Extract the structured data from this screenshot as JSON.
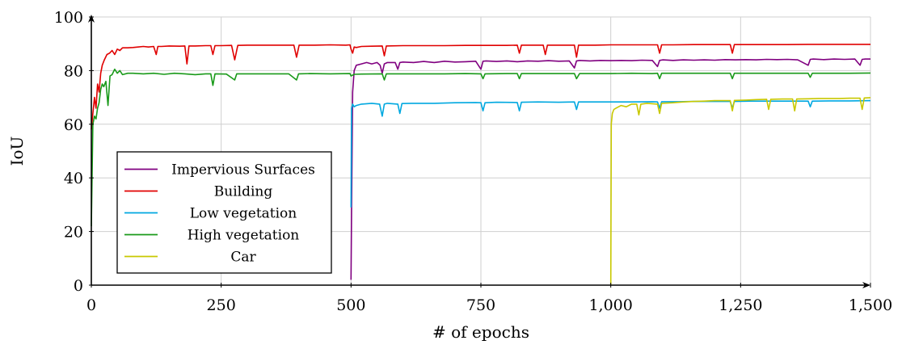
{
  "chart_data": {
    "type": "line",
    "xlabel": "# of epochs",
    "ylabel": "IoU",
    "xlim": [
      0,
      1500
    ],
    "ylim": [
      0,
      100
    ],
    "xticks": [
      0,
      250,
      500,
      750,
      1000,
      1250,
      1500
    ],
    "xtick_labels": [
      "0",
      "250",
      "500",
      "750",
      "1,000",
      "1,250",
      "1,500"
    ],
    "yticks": [
      0,
      20,
      40,
      60,
      80,
      100
    ],
    "ytick_labels": [
      "0",
      "20",
      "40",
      "60",
      "80",
      "100"
    ],
    "grid": true,
    "legend_position": "lower-left",
    "series": [
      {
        "name": "Impervious Surfaces",
        "color": "#800080",
        "x": [
          500,
          501,
          503,
          506,
          510,
          520,
          530,
          540,
          550,
          556,
          560,
          564,
          570,
          585,
          590,
          594,
          600,
          620,
          640,
          660,
          680,
          700,
          720,
          740,
          750,
          754,
          760,
          780,
          800,
          820,
          840,
          860,
          880,
          900,
          920,
          930,
          934,
          940,
          960,
          980,
          1000,
          1020,
          1040,
          1060,
          1080,
          1090,
          1094,
          1100,
          1120,
          1140,
          1160,
          1180,
          1200,
          1220,
          1240,
          1260,
          1280,
          1300,
          1320,
          1340,
          1360,
          1380,
          1384,
          1390,
          1410,
          1430,
          1450,
          1470,
          1480,
          1484,
          1490,
          1500
        ],
        "y": [
          2,
          29,
          72,
          80,
          82,
          82.5,
          83,
          82.5,
          83,
          82,
          79,
          82.5,
          83,
          83,
          80.5,
          83,
          83.2,
          83,
          83.4,
          83,
          83.5,
          83.2,
          83.3,
          83.5,
          80.5,
          83.5,
          83.6,
          83.4,
          83.6,
          83.3,
          83.6,
          83.5,
          83.7,
          83.5,
          83.6,
          81,
          83.6,
          83.8,
          83.6,
          83.8,
          83.7,
          83.8,
          83.7,
          83.9,
          83.8,
          81.5,
          83.8,
          84,
          83.8,
          84,
          83.9,
          84,
          83.9,
          84.1,
          84,
          84.1,
          84,
          84.2,
          84.1,
          84.2,
          84,
          82,
          84.2,
          84.3,
          84.1,
          84.3,
          84.2,
          84.3,
          82,
          84.2,
          84.3,
          84.3
        ]
      },
      {
        "name": "Building",
        "color": "#e00000",
        "x": [
          0,
          3,
          6,
          9,
          12,
          15,
          18,
          21,
          25,
          30,
          35,
          40,
          45,
          50,
          55,
          60,
          70,
          80,
          90,
          100,
          110,
          120,
          125,
          128,
          135,
          150,
          170,
          180,
          184,
          188,
          200,
          220,
          230,
          234,
          238,
          250,
          270,
          276,
          282,
          300,
          330,
          360,
          390,
          395,
          400,
          430,
          460,
          490,
          498,
          500,
          503,
          506,
          510,
          520,
          540,
          560,
          564,
          568,
          600,
          640,
          680,
          720,
          760,
          800,
          820,
          824,
          828,
          860,
          870,
          874,
          878,
          900,
          930,
          934,
          938,
          970,
          1000,
          1040,
          1080,
          1090,
          1094,
          1098,
          1120,
          1160,
          1200,
          1230,
          1234,
          1238,
          1260,
          1300,
          1340,
          1380,
          1420,
          1460,
          1500
        ],
        "y": [
          58,
          64,
          70,
          66,
          75,
          72,
          79,
          82,
          84,
          86,
          86.5,
          87.5,
          86,
          88,
          87.5,
          88.5,
          88.5,
          88.6,
          88.8,
          89,
          88.8,
          89,
          86,
          89,
          89,
          89.2,
          89.1,
          89.2,
          82.5,
          89.2,
          89.2,
          89.3,
          89.3,
          86,
          89.3,
          89.3,
          89.4,
          84,
          89.4,
          89.5,
          89.5,
          89.5,
          89.5,
          85,
          89.5,
          89.5,
          89.6,
          89.5,
          89.6,
          88,
          86.5,
          88.8,
          88.6,
          89,
          89.1,
          89.2,
          85.5,
          89.2,
          89.3,
          89.3,
          89.3,
          89.4,
          89.4,
          89.4,
          89.5,
          86.5,
          89.5,
          89.5,
          89.5,
          86,
          89.5,
          89.5,
          89.5,
          85,
          89.5,
          89.5,
          89.6,
          89.6,
          89.6,
          89.6,
          86.5,
          89.6,
          89.6,
          89.7,
          89.7,
          89.7,
          86.5,
          89.7,
          89.7,
          89.7,
          89.7,
          89.8,
          89.8,
          89.8,
          89.8
        ]
      },
      {
        "name": "Low vegetation",
        "color": "#00a8e0",
        "x": [
          500,
          501,
          503,
          506,
          510,
          520,
          540,
          555,
          560,
          564,
          570,
          590,
          594,
          598,
          620,
          660,
          700,
          740,
          750,
          754,
          758,
          780,
          820,
          824,
          828,
          860,
          900,
          930,
          934,
          938,
          970,
          1000,
          1040,
          1080,
          1090,
          1094,
          1098,
          1130,
          1160,
          1200,
          1230,
          1234,
          1238,
          1270,
          1300,
          1340,
          1380,
          1384,
          1388,
          1420,
          1460,
          1500
        ],
        "y": [
          29,
          66,
          67.5,
          66.5,
          67,
          67.5,
          67.8,
          67.5,
          63,
          67.5,
          67.8,
          67.5,
          64,
          67.7,
          67.8,
          67.8,
          68,
          68.1,
          68,
          65,
          68,
          68.2,
          68.1,
          65,
          68.2,
          68.3,
          68.2,
          68.3,
          65.5,
          68.3,
          68.3,
          68.3,
          68.3,
          68.4,
          68.3,
          66,
          68.4,
          68.4,
          68.5,
          68.5,
          68.5,
          66,
          68.5,
          68.6,
          68.6,
          68.6,
          68.6,
          66.5,
          68.6,
          68.7,
          68.7,
          68.8
        ]
      },
      {
        "name": "High vegetation",
        "color": "#1a9a1a",
        "x": [
          0,
          3,
          6,
          9,
          12,
          15,
          18,
          21,
          24,
          28,
          32,
          36,
          40,
          45,
          50,
          55,
          60,
          70,
          80,
          100,
          120,
          140,
          160,
          180,
          200,
          220,
          230,
          234,
          238,
          260,
          276,
          280,
          300,
          340,
          380,
          395,
          399,
          420,
          460,
          498,
          500,
          503,
          506,
          520,
          560,
          564,
          568,
          600,
          640,
          680,
          720,
          750,
          754,
          758,
          800,
          820,
          824,
          828,
          860,
          900,
          930,
          934,
          940,
          980,
          1000,
          1040,
          1080,
          1090,
          1094,
          1098,
          1140,
          1180,
          1220,
          1230,
          1234,
          1238,
          1280,
          1320,
          1360,
          1380,
          1384,
          1388,
          1420,
          1460,
          1500
        ],
        "y": [
          22,
          60,
          63,
          62,
          66,
          68,
          73,
          75,
          74,
          76,
          67,
          78,
          78.5,
          80.5,
          79,
          80,
          78.5,
          79,
          79,
          78.8,
          79,
          78.6,
          79,
          78.8,
          78.5,
          78.8,
          78.8,
          74.5,
          78.8,
          78.7,
          76.5,
          78.8,
          78.8,
          78.8,
          78.8,
          76.5,
          78.8,
          78.9,
          78.8,
          78.9,
          78,
          78.3,
          78.6,
          78.7,
          78.8,
          76.5,
          78.8,
          78.8,
          78.8,
          78.8,
          78.9,
          78.8,
          77,
          78.8,
          78.9,
          78.9,
          77,
          78.9,
          78.9,
          78.9,
          78.9,
          77,
          78.9,
          78.9,
          78.9,
          79,
          78.9,
          79,
          77,
          79,
          79,
          79,
          79,
          79,
          77,
          79,
          79,
          79,
          79,
          79,
          77.5,
          79,
          79,
          79,
          79.1
        ]
      },
      {
        "name": "Car",
        "color": "#c8c800",
        "x": [
          1000,
          1001,
          1003,
          1006,
          1010,
          1020,
          1030,
          1040,
          1050,
          1054,
          1058,
          1070,
          1090,
          1094,
          1098,
          1120,
          1140,
          1160,
          1180,
          1200,
          1230,
          1234,
          1238,
          1260,
          1280,
          1300,
          1304,
          1308,
          1330,
          1350,
          1354,
          1358,
          1380,
          1400,
          1420,
          1440,
          1460,
          1480,
          1484,
          1488,
          1500
        ],
        "y": [
          0,
          60,
          64,
          65.5,
          66,
          67,
          66.5,
          67.5,
          67.5,
          63.5,
          67.5,
          67.8,
          67.5,
          64,
          67.8,
          68,
          68.3,
          68.5,
          68.6,
          68.8,
          68.8,
          65,
          68.9,
          69,
          69.2,
          69.3,
          65.5,
          69.3,
          69.4,
          69.4,
          65,
          69.4,
          69.5,
          69.6,
          69.6,
          69.6,
          69.7,
          69.7,
          65.5,
          69.8,
          69.9
        ]
      }
    ]
  }
}
